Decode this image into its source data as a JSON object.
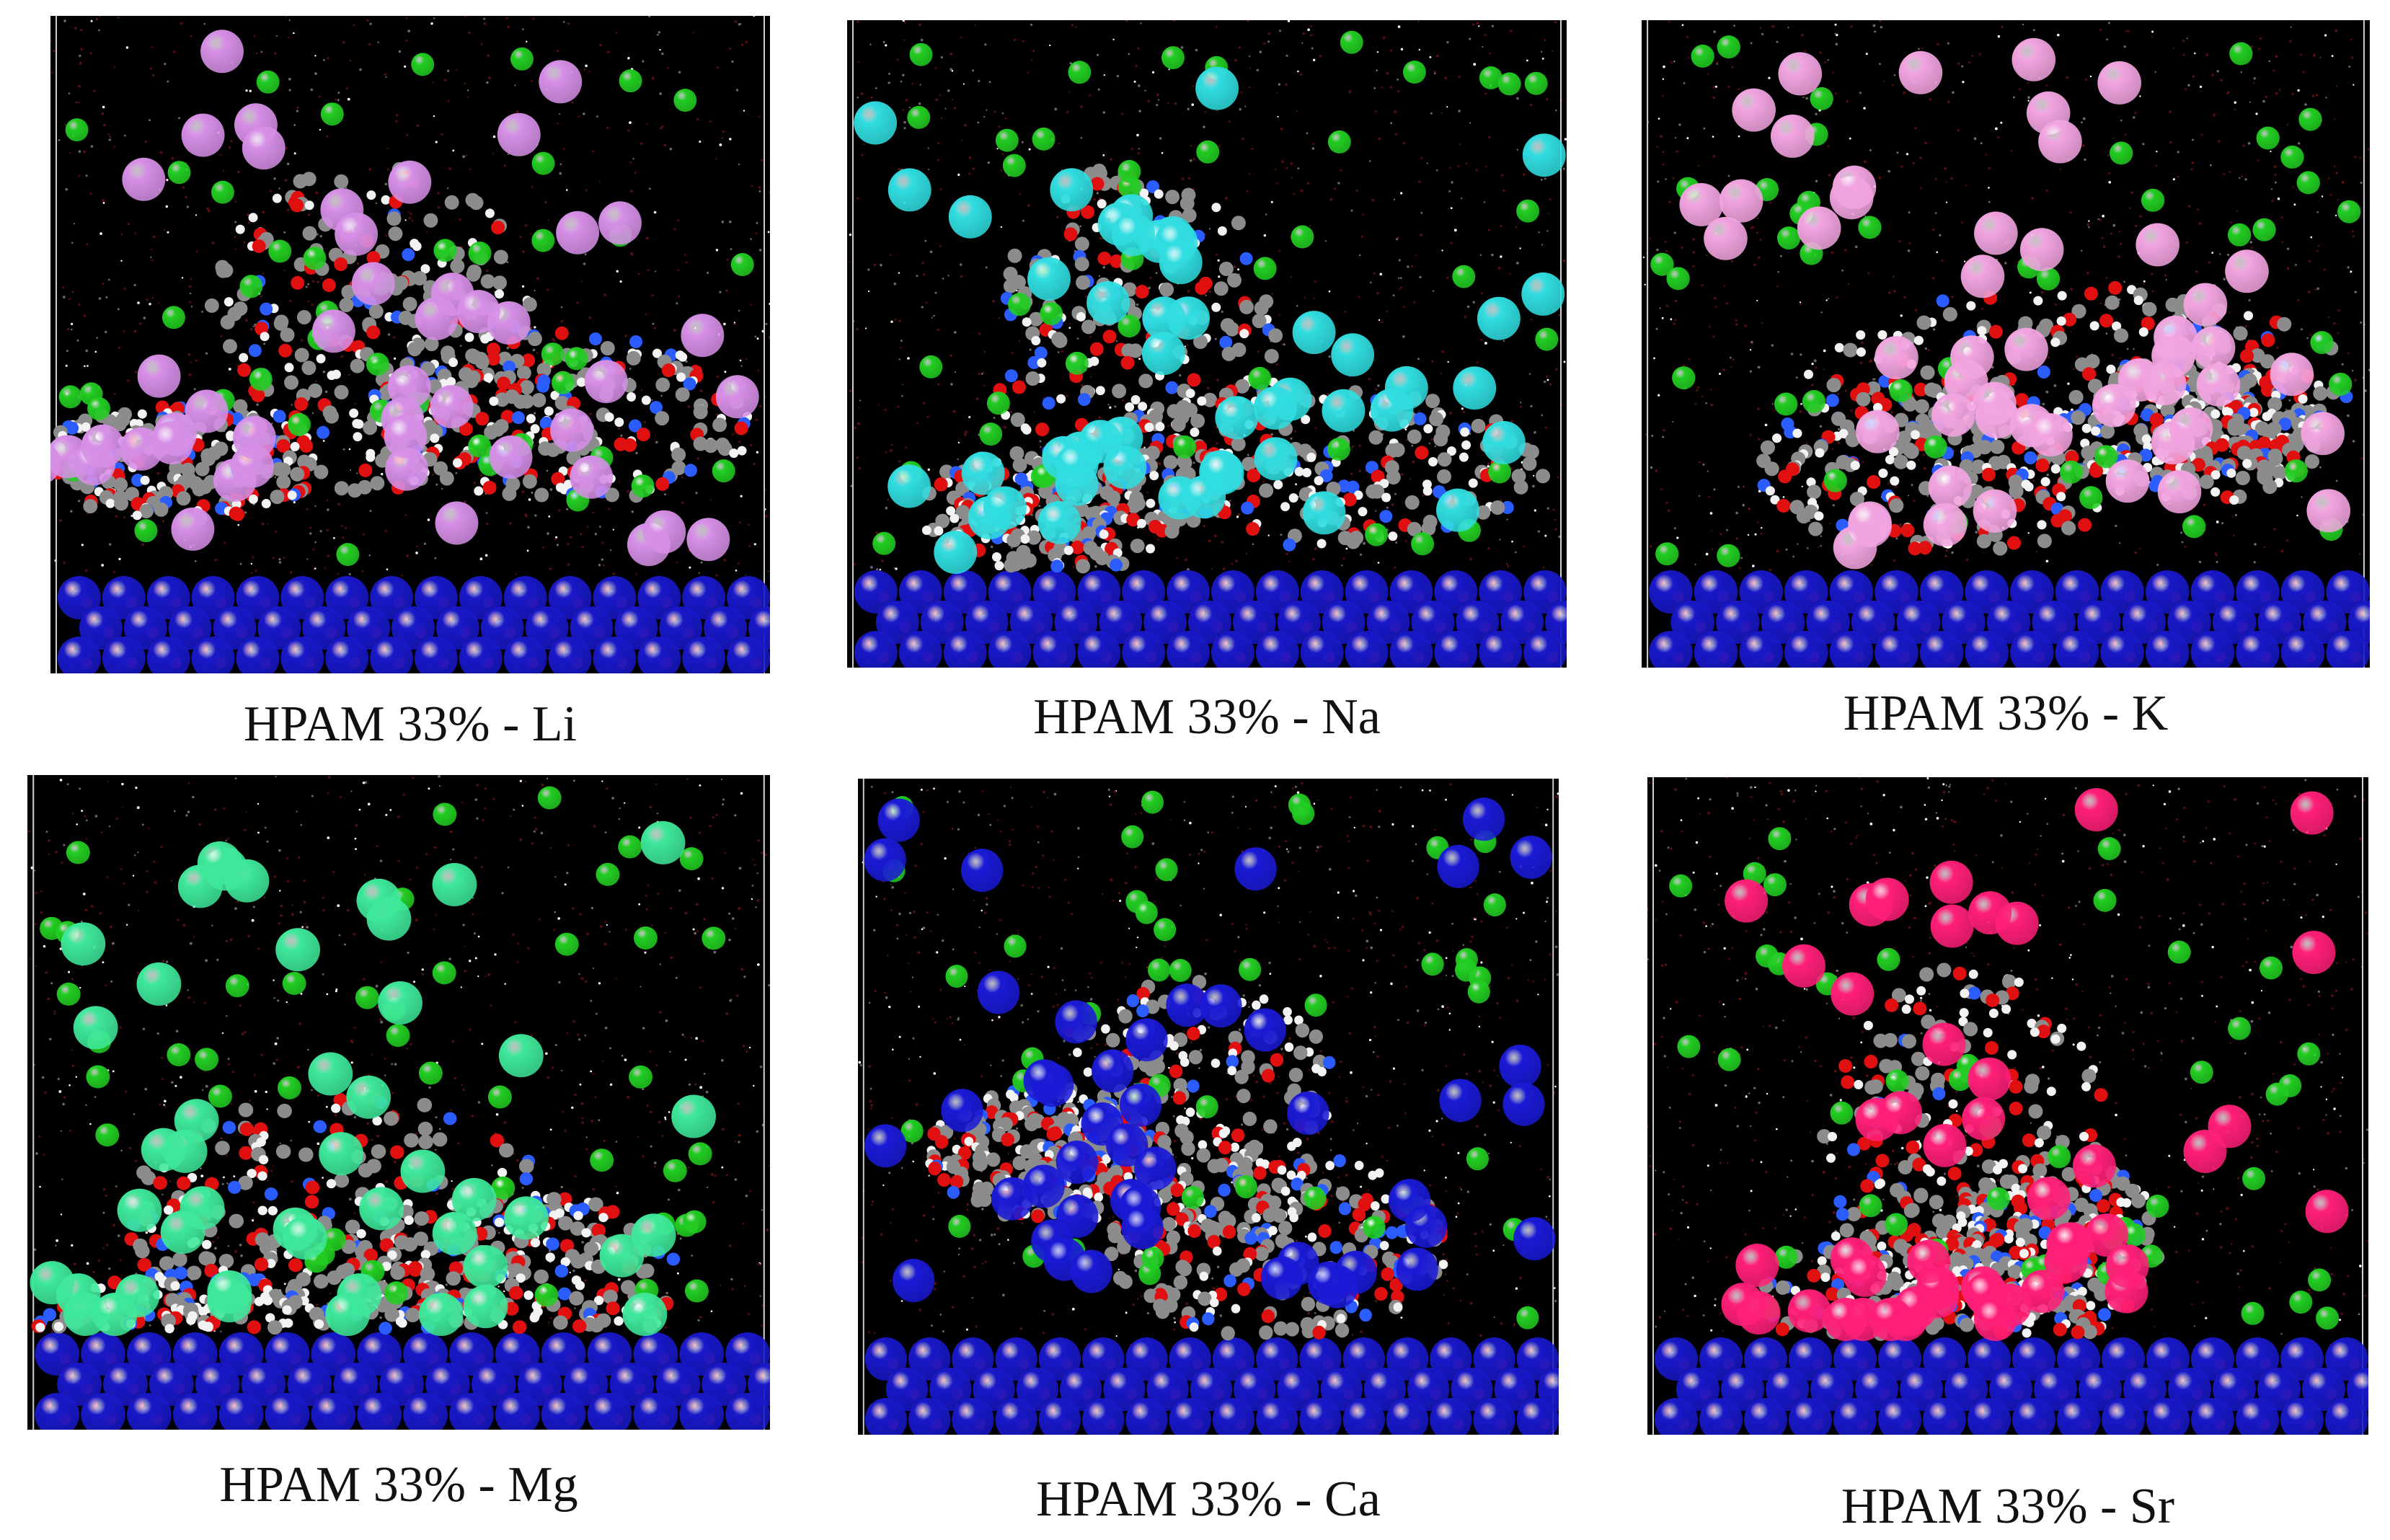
{
  "panels": [
    {
      "caption": "HPAM 33% - Li",
      "ion_color": "#d68fe6",
      "ion_count": 46
    },
    {
      "caption": "HPAM 33% - Na",
      "ion_color": "#30dde0",
      "ion_count": 50
    },
    {
      "caption": "HPAM 33% - K",
      "ion_color": "#f2a4e0",
      "ion_count": 50
    },
    {
      "caption": "HPAM 33% - Mg",
      "ion_color": "#3ee89a",
      "ion_count": 46
    },
    {
      "caption": "HPAM 33% - Ca",
      "ion_color": "#1a1ad6",
      "ion_count": 46
    },
    {
      "caption": "HPAM 33% - Sr",
      "ion_color": "#ff1f78",
      "ion_count": 50
    }
  ],
  "colors": {
    "background": "#000000",
    "chloride": "#22cc22",
    "surface_cation": "#1818c8",
    "oxygen": "#e01010",
    "carbon": "#8c8c8c",
    "hydrogen": "#f2f2f2",
    "nitrogen": "#2a5cff"
  }
}
